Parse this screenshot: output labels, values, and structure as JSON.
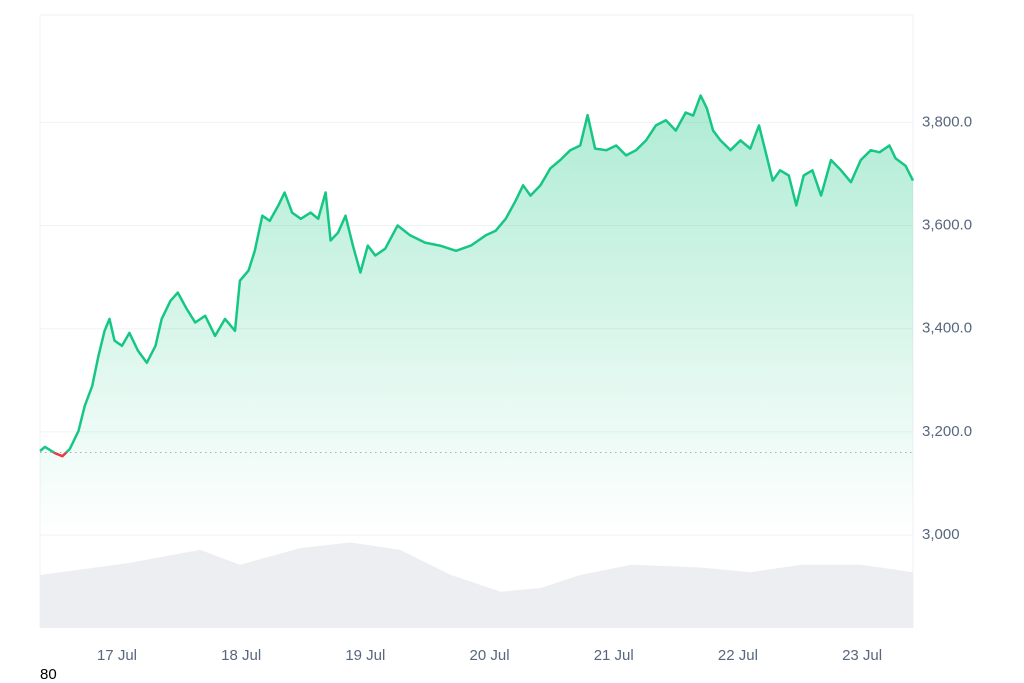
{
  "chart_data": {
    "type": "line",
    "x": [
      16.38,
      16.42,
      16.5,
      16.56,
      16.62,
      16.69,
      16.74,
      16.8,
      16.85,
      16.9,
      16.94,
      16.98,
      17.04,
      17.1,
      17.17,
      17.24,
      17.31,
      17.36,
      17.43,
      17.49,
      17.56,
      17.63,
      17.71,
      17.79,
      17.87,
      17.95,
      17.99,
      18.06,
      18.11,
      18.17,
      18.23,
      18.3,
      18.35,
      18.41,
      18.48,
      18.56,
      18.62,
      18.68,
      18.72,
      18.78,
      18.84,
      18.9,
      18.96,
      19.02,
      19.08,
      19.16,
      19.26,
      19.36,
      19.48,
      19.6,
      19.73,
      19.85,
      19.97,
      20.05,
      20.13,
      20.21,
      20.27,
      20.33,
      20.41,
      20.49,
      20.57,
      20.65,
      20.73,
      20.79,
      20.85,
      20.94,
      21.02,
      21.1,
      21.18,
      21.26,
      21.34,
      21.42,
      21.5,
      21.58,
      21.64,
      21.7,
      21.75,
      21.8,
      21.86,
      21.94,
      22.02,
      22.1,
      22.17,
      22.23,
      22.28,
      22.34,
      22.41,
      22.47,
      22.53,
      22.6,
      22.67,
      22.75,
      22.83,
      22.91,
      22.99,
      23.07,
      23.14,
      23.22,
      23.27,
      23.35,
      23.41
    ],
    "series": [
      {
        "color": "#16c784",
        "down_color": "#ea3943",
        "values": [
          3163,
          3171,
          3159,
          3153,
          3167,
          3202,
          3250,
          3289,
          3347,
          3396,
          3419,
          3377,
          3367,
          3392,
          3357,
          3334,
          3367,
          3419,
          3454,
          3470,
          3439,
          3412,
          3425,
          3386,
          3419,
          3396,
          3493,
          3513,
          3551,
          3619,
          3609,
          3639,
          3664,
          3625,
          3613,
          3625,
          3613,
          3664,
          3571,
          3586,
          3619,
          3561,
          3509,
          3561,
          3542,
          3555,
          3600,
          3581,
          3567,
          3561,
          3551,
          3561,
          3581,
          3590,
          3613,
          3648,
          3678,
          3658,
          3678,
          3711,
          3727,
          3746,
          3755,
          3814,
          3749,
          3746,
          3755,
          3736,
          3746,
          3765,
          3794,
          3804,
          3784,
          3819,
          3813,
          3852,
          3827,
          3784,
          3765,
          3746,
          3765,
          3749,
          3794,
          3736,
          3687,
          3707,
          3697,
          3639,
          3697,
          3707,
          3658,
          3727,
          3707,
          3684,
          3727,
          3746,
          3742,
          3755,
          3730,
          3716,
          3687
        ]
      }
    ],
    "baseline": 3160,
    "volume": {
      "color": "#eceef1",
      "axis": "y2",
      "x": [
        16.38,
        17.1,
        17.67,
        17.99,
        18.48,
        18.88,
        19.28,
        19.69,
        20.09,
        20.41,
        20.73,
        21.14,
        21.7,
        22.1,
        22.51,
        22.99,
        23.41
      ],
      "values": [
        57,
        70,
        84,
        68,
        86,
        92,
        84,
        57,
        39,
        43,
        57,
        68,
        65,
        60,
        68,
        68,
        60
      ]
    },
    "xlim": [
      16.38,
      23.41
    ],
    "xticks": [
      {
        "value": 17,
        "label": "17 Jul"
      },
      {
        "value": 18,
        "label": "18 Jul"
      },
      {
        "value": 19,
        "label": "19 Jul"
      },
      {
        "value": 20,
        "label": "20 Jul"
      },
      {
        "value": 21,
        "label": "21 Jul"
      },
      {
        "value": 22,
        "label": "22 Jul"
      },
      {
        "value": 23,
        "label": "23 Jul"
      }
    ],
    "ylim": [
      2820,
      4008
    ],
    "yticks": [
      {
        "value": 3000,
        "label": "3,000"
      },
      {
        "value": 3200,
        "label": "3,200.0"
      },
      {
        "value": 3400,
        "label": "3,400.0"
      },
      {
        "value": 3600,
        "label": "3,600.0"
      },
      {
        "value": 3800,
        "label": "3,800.0"
      }
    ],
    "y2lim": [
      0,
      100
    ],
    "grid": true,
    "footer_text": "80"
  }
}
